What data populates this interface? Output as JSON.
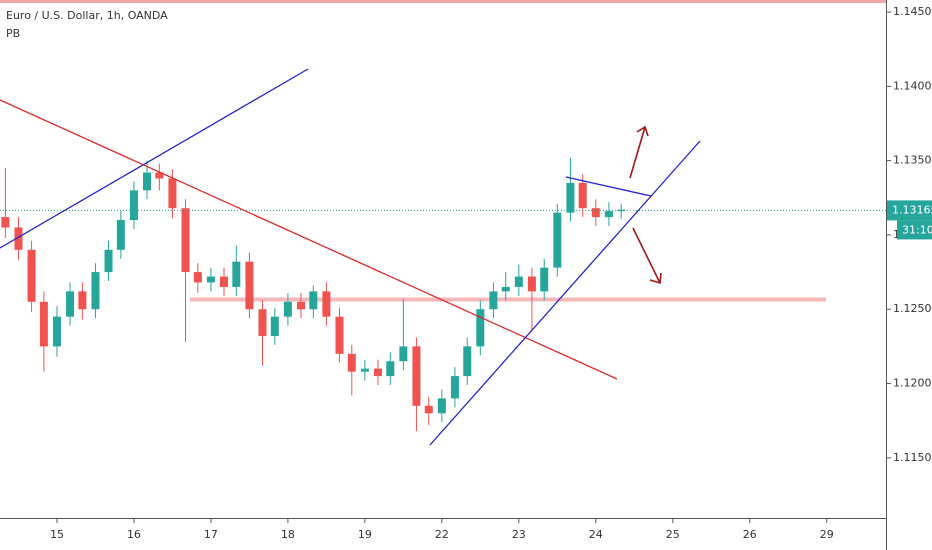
{
  "chart_data": {
    "type": "candlestick",
    "title": "Euro / U.S. Dollar, 1h, OANDA",
    "subtitle": "PB",
    "up_color": "#26a69a",
    "down_color": "#ef5350",
    "x": [
      -0.67,
      -0.5,
      -0.33,
      -0.17,
      0,
      0.17,
      0.33,
      0.5,
      0.67,
      0.83,
      1,
      1.17,
      1.33,
      1.5,
      1.67,
      1.83,
      2,
      2.17,
      2.33,
      2.5,
      2.67,
      2.83,
      3,
      3.17,
      3.33,
      3.5,
      3.67,
      3.83,
      4,
      4.17,
      4.33,
      4.5,
      4.67,
      4.83,
      5,
      5.17,
      5.33,
      5.5,
      5.67,
      5.83,
      6,
      6.17,
      6.33,
      6.5,
      6.67,
      6.83,
      7,
      7.17,
      7.33
    ],
    "open": [
      1.1312,
      1.1305,
      1.129,
      1.1255,
      1.1225,
      1.1245,
      1.1262,
      1.125,
      1.1275,
      1.129,
      1.131,
      1.133,
      1.1342,
      1.1338,
      1.1318,
      1.1275,
      1.1268,
      1.1272,
      1.1265,
      1.1282,
      1.125,
      1.1232,
      1.1245,
      1.1255,
      1.125,
      1.1262,
      1.1245,
      1.122,
      1.1208,
      1.121,
      1.1205,
      1.1215,
      1.1225,
      1.1185,
      1.118,
      1.119,
      1.1205,
      1.1225,
      1.125,
      1.1262,
      1.1265,
      1.1272,
      1.1262,
      1.1278,
      1.1315,
      1.1335,
      1.1318,
      1.1312,
      1.1316
    ],
    "high": [
      1.1345,
      1.1312,
      1.1296,
      1.1262,
      1.1252,
      1.1268,
      1.1268,
      1.1281,
      1.1296,
      1.1316,
      1.1336,
      1.135,
      1.1348,
      1.1344,
      1.1324,
      1.1281,
      1.1278,
      1.1278,
      1.1293,
      1.1288,
      1.1256,
      1.1251,
      1.1261,
      1.1261,
      1.1266,
      1.1268,
      1.1251,
      1.1226,
      1.1216,
      1.1216,
      1.1221,
      1.1257,
      1.1231,
      1.1191,
      1.1196,
      1.1211,
      1.1231,
      1.1256,
      1.1268,
      1.1275,
      1.128,
      1.1278,
      1.1284,
      1.1321,
      1.1352,
      1.1341,
      1.1324,
      1.1322,
      1.1321
    ],
    "low": [
      1.1298,
      1.1283,
      1.1248,
      1.1208,
      1.1218,
      1.1239,
      1.1243,
      1.1244,
      1.1269,
      1.1284,
      1.1304,
      1.1324,
      1.133,
      1.1311,
      1.1228,
      1.1261,
      1.1262,
      1.1259,
      1.1259,
      1.1244,
      1.1212,
      1.1226,
      1.1239,
      1.1244,
      1.1244,
      1.1239,
      1.1214,
      1.1192,
      1.1202,
      1.1199,
      1.1199,
      1.1209,
      1.1168,
      1.1172,
      1.1174,
      1.1184,
      1.1199,
      1.1219,
      1.1244,
      1.1256,
      1.1259,
      1.1235,
      1.1256,
      1.1272,
      1.1309,
      1.1312,
      1.1306,
      1.1306,
      1.1311
    ],
    "close": [
      1.1305,
      1.129,
      1.1255,
      1.1225,
      1.1245,
      1.1262,
      1.125,
      1.1275,
      1.129,
      1.131,
      1.133,
      1.1342,
      1.1338,
      1.1318,
      1.1275,
      1.1268,
      1.1272,
      1.1265,
      1.1282,
      1.125,
      1.1232,
      1.1245,
      1.1255,
      1.125,
      1.1262,
      1.1245,
      1.122,
      1.1208,
      1.121,
      1.1205,
      1.1215,
      1.1225,
      1.1185,
      1.118,
      1.119,
      1.1205,
      1.1225,
      1.125,
      1.1262,
      1.1265,
      1.1272,
      1.1262,
      1.1278,
      1.1315,
      1.1335,
      1.1318,
      1.1312,
      1.1316,
      1.1317
    ],
    "xlim": [
      -0.74,
      10.77
    ],
    "ylim": [
      1.11095,
      1.14581
    ],
    "xticks": [
      {
        "value": 0,
        "label": "15"
      },
      {
        "value": 1,
        "label": "16"
      },
      {
        "value": 2,
        "label": "17"
      },
      {
        "value": 3,
        "label": "18"
      },
      {
        "value": 4,
        "label": "19"
      },
      {
        "value": 5,
        "label": "22"
      },
      {
        "value": 6,
        "label": "23"
      },
      {
        "value": 7,
        "label": "24"
      },
      {
        "value": 8,
        "label": "25"
      },
      {
        "value": 9,
        "label": "26"
      },
      {
        "value": 10,
        "label": "29"
      }
    ],
    "yticks": [
      {
        "value": 1.145,
        "label": "1.14500"
      },
      {
        "value": 1.14,
        "label": "1.14000"
      },
      {
        "value": 1.135,
        "label": "1.13500"
      },
      {
        "value": 1.13,
        "label": "1.13000"
      },
      {
        "value": 1.125,
        "label": "1.12500"
      },
      {
        "value": 1.12,
        "label": "1.12000"
      },
      {
        "value": 1.115,
        "label": "1.11500"
      }
    ],
    "last_price": 1.13165,
    "countdown": "31:10",
    "grid": false
  }
}
